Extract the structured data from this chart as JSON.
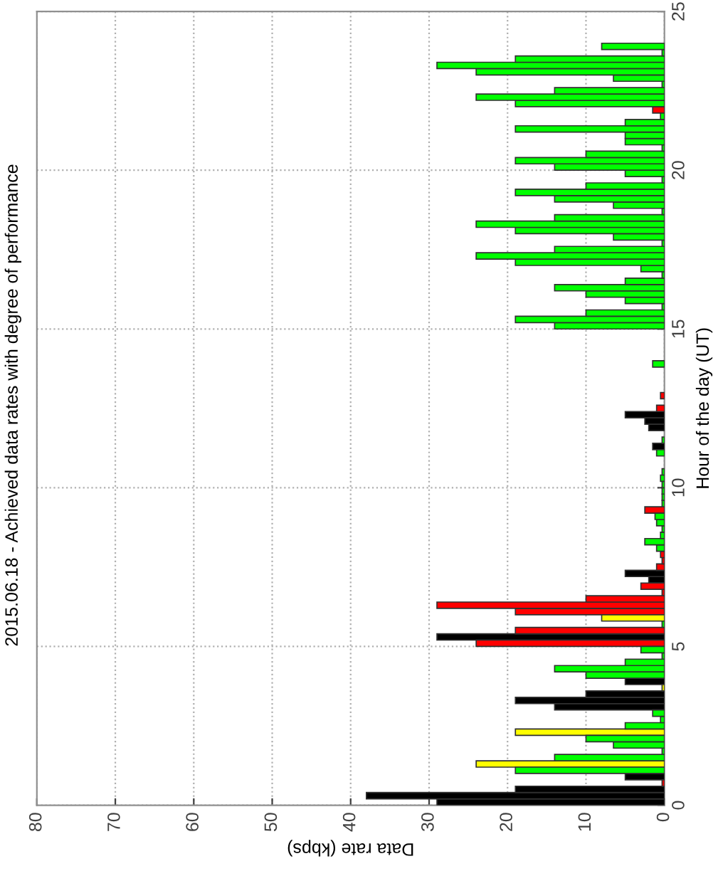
{
  "chart_data": {
    "type": "bar",
    "orientation": "horizontal",
    "title": "2015.06.18 - Achieved data rates with degree of performance",
    "xlabel": "Data rate (kbps)",
    "ylabel": "Hour of the day (UT)",
    "xlim": [
      80,
      0
    ],
    "xticks": [
      0,
      10,
      20,
      30,
      40,
      50,
      60,
      70,
      80
    ],
    "ylim": [
      0,
      25
    ],
    "yticks": [
      0,
      5,
      10,
      15,
      20,
      25
    ],
    "grid": true,
    "legend": false,
    "series": [
      {
        "color": "#000000",
        "x": [
          0.1,
          0.3,
          0.5,
          0.9,
          3.1,
          3.3,
          3.5,
          3.9,
          5.3,
          7.1,
          7.3,
          11.3,
          11.9,
          12.1,
          12.3
        ],
        "values": [
          29,
          38,
          19,
          5,
          14,
          19,
          10,
          5,
          29,
          2,
          5,
          1.5,
          2,
          2.5,
          5
        ]
      },
      {
        "color": "#ff0000",
        "x": [
          0.7,
          5.1,
          5.5,
          6.1,
          6.3,
          6.5,
          6.7,
          6.9,
          7.5,
          7.7,
          7.9,
          9.3,
          12.5,
          12.9,
          21.9
        ],
        "values": [
          0.3,
          24,
          19,
          19,
          29,
          10,
          0.3,
          3,
          1,
          0.3,
          0.5,
          2.5,
          1,
          0.5,
          1.5
        ]
      },
      {
        "color": "#ffff00",
        "x": [
          1.3,
          2.3,
          3.7,
          5.9
        ],
        "values": [
          24,
          19,
          0.3,
          8
        ]
      },
      {
        "color": "#00ff00",
        "x": [
          1.1,
          1.5,
          1.7,
          1.9,
          2.1,
          2.5,
          2.7,
          2.9,
          4.1,
          4.3,
          4.5,
          4.7,
          4.9,
          5.7,
          8.1,
          8.3,
          8.5,
          8.7,
          8.9,
          9.1,
          9.5,
          9.7,
          9.9,
          10.1,
          10.3,
          10.5,
          11.1,
          11.5,
          13.9,
          15.1,
          15.3,
          15.5,
          15.7,
          15.9,
          16.1,
          16.3,
          16.5,
          16.7,
          16.9,
          17.1,
          17.3,
          17.5,
          17.7,
          17.9,
          18.1,
          18.3,
          18.5,
          18.7,
          18.9,
          19.1,
          19.3,
          19.5,
          19.7,
          19.9,
          20.1,
          20.3,
          20.5,
          20.7,
          20.9,
          21.1,
          21.3,
          21.5,
          21.7,
          22.1,
          22.3,
          22.5,
          22.7,
          22.9,
          23.1,
          23.3,
          23.5,
          23.7,
          23.9
        ],
        "values": [
          19,
          14,
          0.3,
          6.5,
          10,
          5,
          0.5,
          1.5,
          10,
          14,
          5,
          0.3,
          3,
          0.3,
          1,
          2.5,
          0.5,
          0.3,
          1,
          1.2,
          0.3,
          0.3,
          0.3,
          0.3,
          0.5,
          0.3,
          1,
          0.3,
          1.5,
          14,
          19,
          10,
          0.3,
          5,
          10,
          14,
          5,
          0.3,
          3,
          19,
          24,
          14,
          0.3,
          6.5,
          19,
          24,
          14,
          0.3,
          6.5,
          14,
          19,
          10,
          0.3,
          5,
          14,
          19,
          10,
          0.3,
          5,
          5,
          19,
          5,
          0.5,
          19,
          24,
          14,
          0.3,
          6.5,
          24,
          29,
          19,
          0.3,
          8
        ]
      }
    ]
  }
}
